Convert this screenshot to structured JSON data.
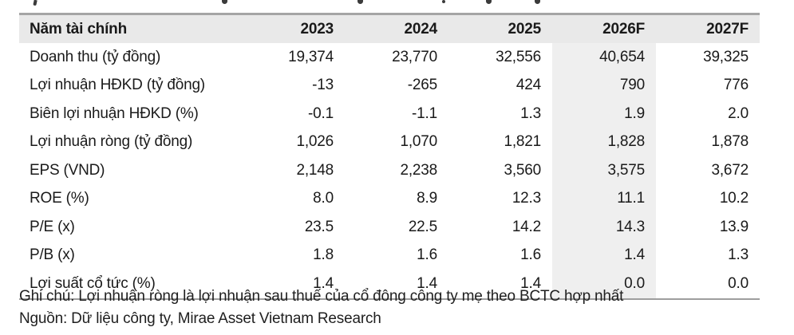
{
  "table": {
    "header": [
      "Năm tài chính",
      "2023",
      "2024",
      "2025",
      "2026F",
      "2027F"
    ],
    "highlight_column": "2026F",
    "highlight_col_index": 4,
    "rows": [
      {
        "label": "Doanh thu (tỷ đồng)",
        "values": [
          "19,374",
          "23,770",
          "32,556",
          "40,654",
          "39,325"
        ]
      },
      {
        "label": "Lợi nhuận HĐKD (tỷ đồng)",
        "values": [
          "-13",
          "-265",
          "424",
          "790",
          "776"
        ]
      },
      {
        "label": "Biên lợi nhuận HĐKD (%)",
        "values": [
          "-0.1",
          "-1.1",
          "1.3",
          "1.9",
          "2.0"
        ]
      },
      {
        "label": "Lợi nhuận ròng (tỷ đồng)",
        "values": [
          "1,026",
          "1,070",
          "1,821",
          "1,828",
          "1,878"
        ]
      },
      {
        "label": "EPS (VND)",
        "values": [
          "2,148",
          "2,238",
          "3,560",
          "3,575",
          "3,672"
        ]
      },
      {
        "label": "ROE (%)",
        "values": [
          "8.0",
          "8.9",
          "12.3",
          "11.1",
          "10.2"
        ]
      },
      {
        "label": "P/E (x)",
        "values": [
          "23.5",
          "22.5",
          "14.2",
          "14.3",
          "13.9"
        ]
      },
      {
        "label": "P/B (x)",
        "values": [
          "1.8",
          "1.6",
          "1.6",
          "1.4",
          "1.3"
        ]
      },
      {
        "label": "Lợi suất cổ tức (%)",
        "values": [
          "1.4",
          "1.4",
          "1.4",
          "0.0",
          "0.0"
        ]
      }
    ]
  },
  "notes": {
    "note": "Ghi chú: Lợi nhuận ròng là lợi nhuận sau thuế của cổ đông công ty mẹ theo BCTC hợp nhất",
    "source": "Nguồn: Dữ liệu công ty, Mirae Asset Vietnam Research"
  },
  "colors": {
    "header_bg": "#e9e9e9",
    "forecast_column_bg": "#efefef",
    "rule": "#a5a5a5",
    "text": "#1a1a1a"
  }
}
